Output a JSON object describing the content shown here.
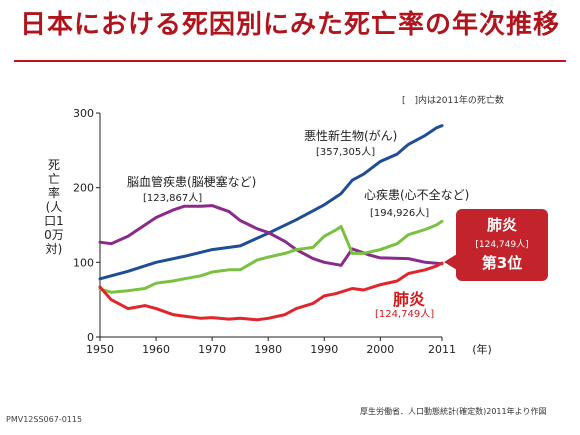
{
  "title": "日本における死因別にみた死亡率の年次推移",
  "note": "[　]内は2011年の死亡数",
  "ylabel": "死亡率(人口10万対)",
  "xunit": "(年)",
  "source": "厚生労働省．人口動態統計(確定数)2011年より作図",
  "code": "PMV12SS067-0115",
  "labels": {
    "cancer": "悪性新生物(がん)",
    "cancer_count": "[357,305人]",
    "cerebro": "脳血管疾患(脳梗塞など)",
    "cerebro_count": "[123,867人]",
    "heart": "心疾患(心不全など)",
    "heart_count": "[194,926人]",
    "pneumonia": "肺炎",
    "pneumonia_count": "[124,749人]"
  },
  "callout": {
    "title": "肺炎",
    "count": "[124,749人]",
    "rank": "第3位"
  },
  "colors": {
    "cancer": "#1f4e96",
    "cerebro": "#8a2a8a",
    "heart": "#7ac142",
    "pneumonia": "#e0262a",
    "accent": "#c3121c"
  },
  "chart_data": {
    "type": "line",
    "title": "日本における死因別にみた死亡率の年次推移",
    "xlabel": "(年)",
    "ylabel": "死亡率(人口10万対)",
    "xlim": [
      1950,
      2011
    ],
    "ylim": [
      0,
      300
    ],
    "xticks": [
      1950,
      1960,
      1970,
      1980,
      1990,
      2000,
      2011
    ],
    "yticks": [
      0,
      100,
      200,
      300
    ],
    "grid": false,
    "series": [
      {
        "name": "悪性新生物(がん)",
        "color": "#1f4e96",
        "x": [
          1950,
          1955,
          1960,
          1965,
          1970,
          1975,
          1980,
          1985,
          1990,
          1993,
          1995,
          1997,
          2000,
          2003,
          2005,
          2008,
          2010,
          2011
        ],
        "y": [
          78,
          88,
          100,
          108,
          117,
          122,
          139,
          157,
          177,
          192,
          210,
          218,
          235,
          245,
          258,
          270,
          280,
          283
        ]
      },
      {
        "name": "脳血管疾患(脳梗塞など)",
        "color": "#8a2a8a",
        "x": [
          1950,
          1952,
          1955,
          1958,
          1960,
          1963,
          1965,
          1968,
          1970,
          1973,
          1975,
          1978,
          1980,
          1983,
          1985,
          1988,
          1990,
          1993,
          1995,
          1998,
          2000,
          2005,
          2008,
          2011
        ],
        "y": [
          127,
          125,
          135,
          150,
          160,
          170,
          175,
          175,
          176,
          168,
          156,
          145,
          140,
          128,
          117,
          105,
          100,
          96,
          118,
          110,
          106,
          105,
          100,
          98
        ]
      },
      {
        "name": "心疾患(心不全など)",
        "color": "#7ac142",
        "x": [
          1950,
          1952,
          1955,
          1958,
          1960,
          1963,
          1965,
          1968,
          1970,
          1973,
          1975,
          1978,
          1980,
          1983,
          1985,
          1988,
          1990,
          1992,
          1993,
          1994,
          1995,
          1997,
          2000,
          2003,
          2005,
          2008,
          2010,
          2011
        ],
        "y": [
          64,
          60,
          62,
          65,
          72,
          75,
          78,
          82,
          87,
          90,
          90,
          103,
          107,
          112,
          117,
          120,
          135,
          143,
          148,
          130,
          112,
          112,
          117,
          125,
          137,
          144,
          150,
          155
        ]
      },
      {
        "name": "肺炎",
        "color": "#e0262a",
        "x": [
          1950,
          1952,
          1955,
          1958,
          1960,
          1963,
          1965,
          1968,
          1970,
          1973,
          1975,
          1978,
          1980,
          1983,
          1985,
          1988,
          1990,
          1992,
          1995,
          1997,
          2000,
          2003,
          2005,
          2008,
          2010,
          2011
        ],
        "y": [
          67,
          50,
          38,
          42,
          38,
          30,
          28,
          25,
          26,
          24,
          25,
          23,
          25,
          30,
          38,
          45,
          55,
          58,
          65,
          63,
          70,
          75,
          85,
          90,
          95,
          99
        ]
      }
    ]
  }
}
